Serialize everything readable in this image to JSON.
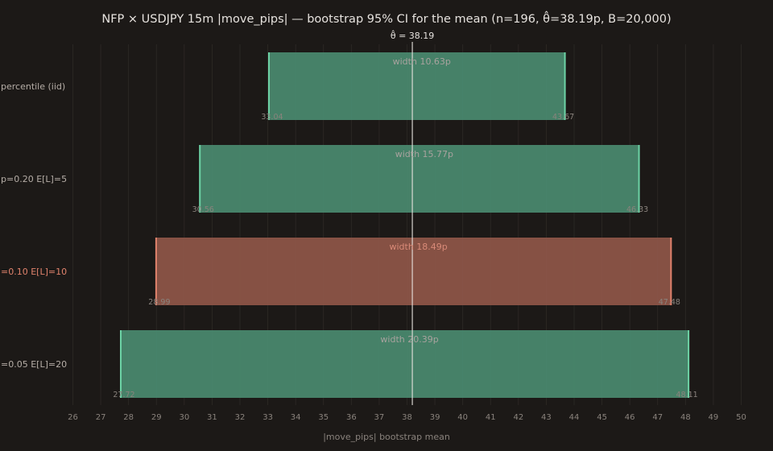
{
  "chart_data": {
    "type": "bar",
    "orientation": "horizontal-interval",
    "title": "NFP × USDJPY 15m |move_pips| — bootstrap 95% CI for the mean (n=196, θ̂=38.19p, B=20,000)",
    "xlabel": "|move_pips| bootstrap mean",
    "ylabel": "",
    "xlim": [
      25.8,
      50.2
    ],
    "xticks": [
      26,
      27,
      28,
      29,
      30,
      31,
      32,
      33,
      34,
      35,
      36,
      37,
      38,
      39,
      40,
      41,
      42,
      43,
      44,
      45,
      46,
      47,
      48,
      49,
      50
    ],
    "grid": "vertical",
    "reference_line": {
      "value": 38.19,
      "label": "θ̂ = 38.19"
    },
    "intervals": [
      {
        "category": "percentile (iid)",
        "lo": 33.04,
        "hi": 43.67,
        "lo_label": "33.04",
        "hi_label": "43.67",
        "width_label": "width 10.63p",
        "highlight": false
      },
      {
        "category": "p=0.20 E[L]=5",
        "lo": 30.56,
        "hi": 46.33,
        "lo_label": "30.56",
        "hi_label": "46.33",
        "width_label": "width 15.77p",
        "highlight": false
      },
      {
        "category": "=0.10 E[L]=10",
        "lo": 28.99,
        "hi": 47.48,
        "lo_label": "28.99",
        "hi_label": "47.48",
        "width_label": "width 18.49p",
        "highlight": true
      },
      {
        "category": "=0.05 E[L]=20",
        "lo": 27.72,
        "hi": 48.11,
        "lo_label": "27.72",
        "hi_label": "48.11",
        "width_label": "width 20.39p",
        "highlight": false
      }
    ],
    "colors": {
      "background": "#1c1917",
      "bar": "#4a8a70",
      "bar_edge": "#6dd4a6",
      "highlight_bar": "#8f5649",
      "highlight_edge": "#e0826c",
      "width_label": "#a8a29e",
      "highlight_width_label": "#d98a78",
      "category_label": "#b5ada6",
      "highlight_category_label": "#e0826c",
      "tick_label": "#8a837d",
      "end_label": "#8a837d",
      "grid": "#2e2a27",
      "reference_line": "#e6e2de",
      "title": "#e6e2de"
    }
  }
}
